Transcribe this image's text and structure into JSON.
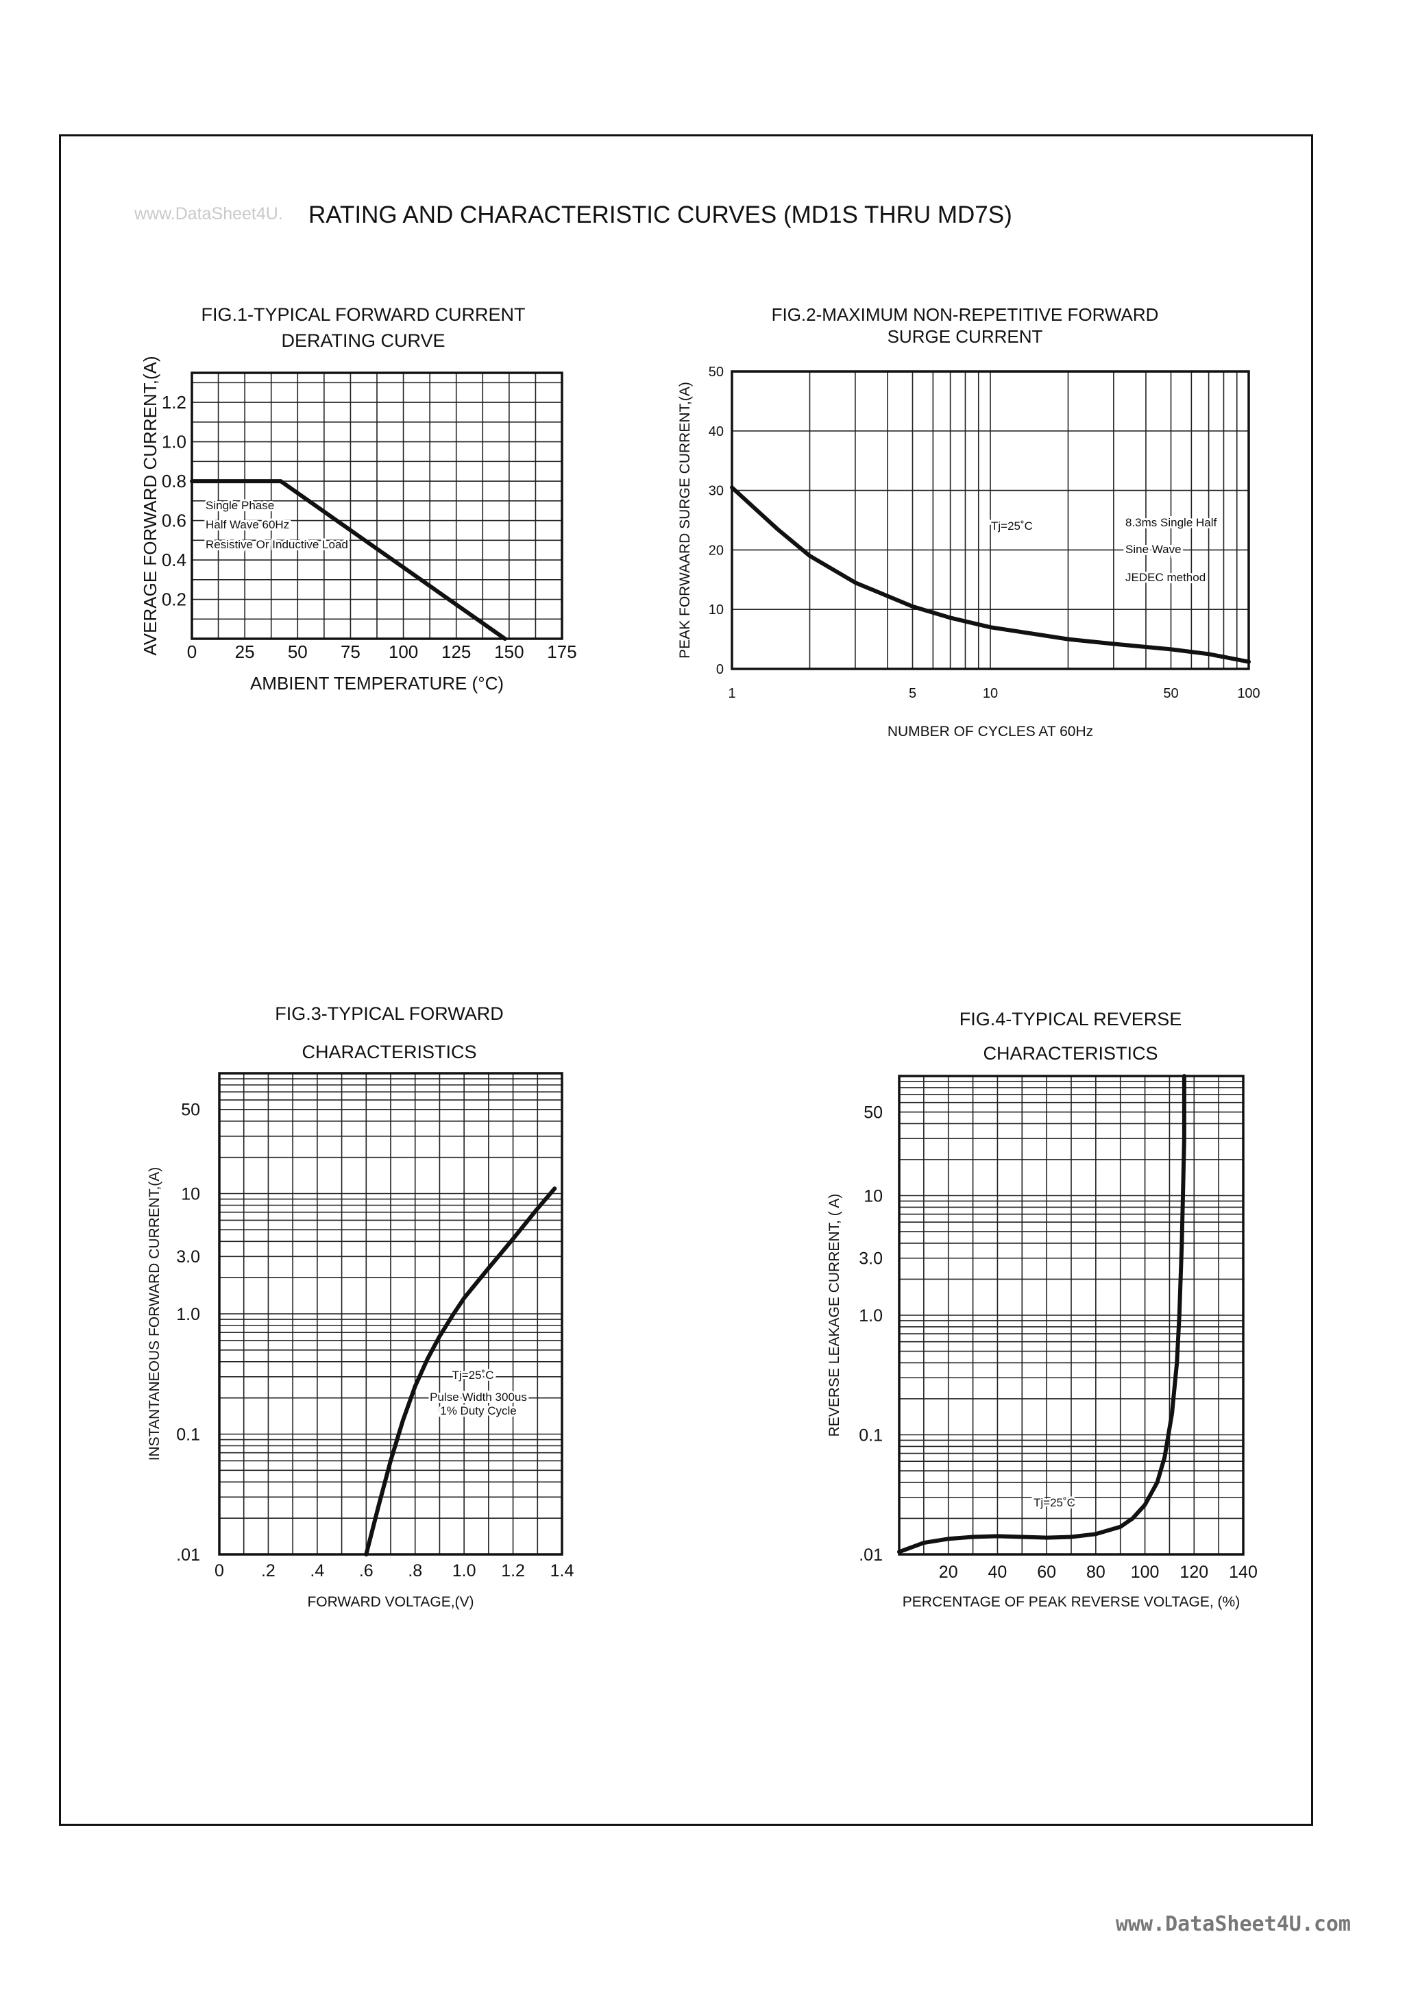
{
  "page": {
    "title": "RATING AND CHARACTERISTIC CURVES (MD1S THRU MD7S)",
    "watermark_top": "www.DataSheet4U.",
    "watermark_bottom": "www.DataSheet4U.com"
  },
  "chart_data": [
    {
      "id": "fig1",
      "type": "line",
      "title_lines": [
        "FIG.1-TYPICAL FORWARD CURRENT",
        "DERATING CURVE"
      ],
      "xlabel": "AMBIENT TEMPERATURE (°C)",
      "ylabel": "AVERAGE FORWARD CURRENT,(A)",
      "xlim": [
        0,
        175
      ],
      "ylim": [
        0,
        1.35
      ],
      "x_ticks": [
        0,
        25,
        50,
        75,
        100,
        125,
        150,
        175
      ],
      "x_tick_labels": [
        "0",
        "25",
        "50",
        "75",
        "100",
        "125",
        "150",
        "175"
      ],
      "y_ticks": [
        0.2,
        0.4,
        0.6,
        0.8,
        1.0,
        1.2
      ],
      "y_tick_labels": [
        "0.2",
        "0.4",
        "0.6",
        "0.8",
        "1.0",
        "1.2"
      ],
      "grid": true,
      "annotations": [
        "Single Phase",
        "Half Wave 60Hz",
        "Resistive Or Inductive Load"
      ],
      "series": [
        {
          "x": [
            0,
            42,
            148
          ],
          "y": [
            0.8,
            0.8,
            0.0
          ]
        }
      ]
    },
    {
      "id": "fig2",
      "type": "line",
      "title_lines": [
        "FIG.2-MAXIMUM NON-REPETITIVE FORWARD",
        "SURGE CURRENT"
      ],
      "xlabel": "NUMBER OF CYCLES AT 60Hz",
      "ylabel": "PEAK FORWAARD SURGE CURRENT,(A)",
      "xscale": "log",
      "xlim": [
        1,
        100
      ],
      "ylim": [
        0,
        50
      ],
      "x_ticks": [
        1,
        5,
        10,
        50,
        100
      ],
      "x_tick_labels": [
        "1",
        "5",
        "10",
        "50",
        "100"
      ],
      "y_ticks": [
        0,
        10,
        20,
        30,
        40,
        50
      ],
      "y_tick_labels": [
        "0",
        "10",
        "20",
        "30",
        "40",
        "50"
      ],
      "grid": true,
      "annotations": [
        "Tj=25˚C",
        "8.3ms Single Half",
        "Sine Wave",
        "JEDEC method"
      ],
      "series": [
        {
          "x": [
            1,
            1.5,
            2,
            3,
            5,
            7,
            10,
            20,
            30,
            50,
            70,
            100
          ],
          "y": [
            30.5,
            23.5,
            19,
            14.5,
            10.5,
            8.6,
            7,
            5,
            4.2,
            3.3,
            2.5,
            1.2
          ]
        }
      ]
    },
    {
      "id": "fig3",
      "type": "line",
      "title_lines": [
        "FIG.3-TYPICAL FORWARD",
        "CHARACTERISTICS"
      ],
      "xlabel": "FORWARD VOLTAGE,(V)",
      "ylabel": "INSTANTANEOUS FORWARD CURRENT,(A)",
      "yscale": "log",
      "xlim": [
        0,
        1.4
      ],
      "ylim": [
        0.01,
        100
      ],
      "x_ticks": [
        0,
        0.2,
        0.4,
        0.6,
        0.8,
        1.0,
        1.2,
        1.4
      ],
      "x_tick_labels": [
        "0",
        ".2",
        ".4",
        ".6",
        ".8",
        "1.0",
        "1.2",
        "1.4"
      ],
      "y_ticks": [
        0.01,
        0.1,
        1.0,
        3.0,
        10,
        50
      ],
      "y_tick_labels": [
        ".01",
        "0.1",
        "1.0",
        "3.0",
        "10",
        "50"
      ],
      "grid": true,
      "annotations": [
        "Tj=25˚C",
        "Pulse Width 300us",
        "1% Duty Cycle"
      ],
      "series": [
        {
          "x": [
            0.6,
            0.65,
            0.7,
            0.75,
            0.8,
            0.85,
            0.9,
            0.95,
            1.0,
            1.05,
            1.1,
            1.2,
            1.3,
            1.37
          ],
          "y": [
            0.01,
            0.025,
            0.06,
            0.13,
            0.25,
            0.42,
            0.65,
            0.95,
            1.35,
            1.8,
            2.4,
            4.2,
            7.5,
            11
          ]
        }
      ]
    },
    {
      "id": "fig4",
      "type": "line",
      "title_lines": [
        "FIG.4-TYPICAL REVERSE",
        "CHARACTERISTICS"
      ],
      "xlabel": "PERCENTAGE OF PEAK REVERSE VOLTAGE, (%)",
      "ylabel": "REVERSE LEAKAGE CURRENT, (   A)",
      "yscale": "log",
      "xlim": [
        0,
        140
      ],
      "ylim": [
        0.01,
        100
      ],
      "x_ticks": [
        20,
        40,
        60,
        80,
        100,
        120,
        140
      ],
      "x_tick_labels": [
        "20",
        "40",
        "60",
        "80",
        "100",
        "120",
        "140"
      ],
      "y_ticks": [
        0.01,
        0.1,
        1.0,
        3.0,
        10,
        50
      ],
      "y_tick_labels": [
        ".01",
        "0.1",
        "1.0",
        "3.0",
        "10",
        "50"
      ],
      "grid": true,
      "annotations": [
        "Tj=25˚C"
      ],
      "series": [
        {
          "x": [
            0,
            10,
            20,
            30,
            40,
            50,
            60,
            70,
            80,
            90,
            95,
            100,
            105,
            108,
            111,
            113,
            114,
            115,
            116,
            116
          ],
          "y": [
            0.0105,
            0.0125,
            0.0135,
            0.014,
            0.0142,
            0.014,
            0.0138,
            0.014,
            0.0148,
            0.017,
            0.02,
            0.026,
            0.04,
            0.065,
            0.15,
            0.4,
            1.0,
            4.0,
            30,
            100
          ]
        }
      ]
    }
  ]
}
